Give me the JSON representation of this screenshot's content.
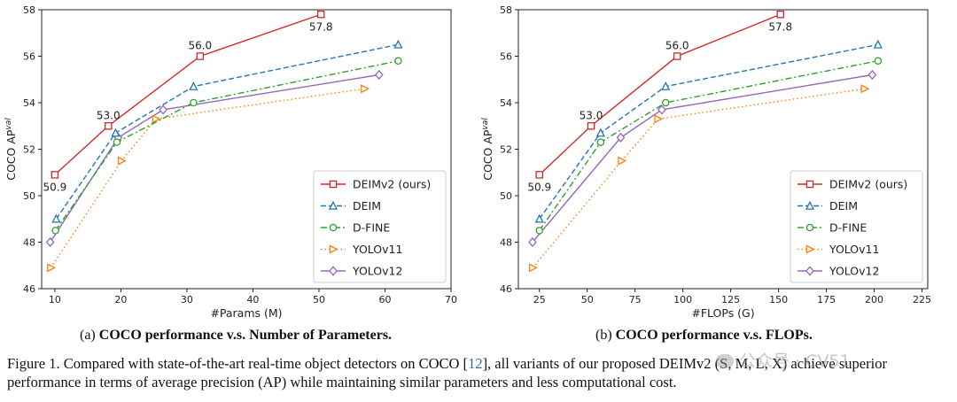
{
  "chart_data": [
    {
      "type": "line",
      "id": "params",
      "xlabel": "#Params (M)",
      "ylabel": "COCO AP",
      "ylabel_sup": "val",
      "xlim": [
        8,
        70
      ],
      "ylim": [
        46,
        58
      ],
      "xticks": [
        10,
        20,
        30,
        40,
        50,
        60,
        70
      ],
      "yticks": [
        46,
        48,
        50,
        52,
        54,
        56,
        58
      ],
      "annotations": [
        "50.9",
        "53.0",
        "56.0",
        "57.8"
      ],
      "series": [
        {
          "name": "DEIMv2 (ours)",
          "color": "#d62728",
          "dash": "solid",
          "marker": "square",
          "x": [
            10,
            18.1,
            32,
            50.3
          ],
          "y": [
            50.9,
            53.0,
            56.0,
            57.8
          ]
        },
        {
          "name": "DEIM",
          "color": "#1f77b4",
          "dash": "dashed",
          "marker": "triangle",
          "x": [
            10.2,
            19.2,
            31,
            62
          ],
          "y": [
            49.0,
            52.7,
            54.7,
            56.5
          ]
        },
        {
          "name": "D-FINE",
          "color": "#2ca02c",
          "dash": "dashdot",
          "marker": "circle",
          "x": [
            10.1,
            19.4,
            31,
            62
          ],
          "y": [
            48.5,
            52.3,
            54.0,
            55.8
          ]
        },
        {
          "name": "YOLOv11",
          "color": "#ff7f0e",
          "dash": "dotted",
          "marker": "triangle-right",
          "x": [
            9.4,
            20.1,
            25.3,
            56.9
          ],
          "y": [
            46.9,
            51.5,
            53.3,
            54.6
          ]
        },
        {
          "name": "YOLOv12",
          "color": "#9467bd",
          "dash": "solid",
          "marker": "diamond",
          "x": [
            9.3,
            19.6,
            26.4,
            59.1
          ],
          "y": [
            48.0,
            52.5,
            53.7,
            55.2
          ]
        }
      ]
    },
    {
      "type": "line",
      "id": "flops",
      "xlabel": "#FLOPs (G)",
      "ylabel": "COCO AP",
      "ylabel_sup": "val",
      "xlim": [
        14,
        228
      ],
      "ylim": [
        46,
        58
      ],
      "xticks": [
        25,
        50,
        75,
        100,
        125,
        150,
        175,
        200,
        225
      ],
      "yticks": [
        46,
        48,
        50,
        52,
        54,
        56,
        58
      ],
      "annotations": [
        "50.9",
        "53.0",
        "56.0",
        "57.8"
      ],
      "series": [
        {
          "name": "DEIMv2 (ours)",
          "color": "#d62728",
          "dash": "solid",
          "marker": "square",
          "x": [
            25,
            52,
            97,
            151
          ],
          "y": [
            50.9,
            53.0,
            56.0,
            57.8
          ]
        },
        {
          "name": "DEIM",
          "color": "#1f77b4",
          "dash": "dashed",
          "marker": "triangle",
          "x": [
            25,
            57,
            91,
            202
          ],
          "y": [
            49.0,
            52.7,
            54.7,
            56.5
          ]
        },
        {
          "name": "D-FINE",
          "color": "#2ca02c",
          "dash": "dashdot",
          "marker": "circle",
          "x": [
            25,
            57,
            91,
            202
          ],
          "y": [
            48.5,
            52.3,
            54.0,
            55.8
          ]
        },
        {
          "name": "YOLOv11",
          "color": "#ff7f0e",
          "dash": "dotted",
          "marker": "triangle-right",
          "x": [
            21.5,
            68,
            87,
            195
          ],
          "y": [
            46.9,
            51.5,
            53.3,
            54.6
          ]
        },
        {
          "name": "YOLOv12",
          "color": "#9467bd",
          "dash": "solid",
          "marker": "diamond",
          "x": [
            21.4,
            67.5,
            89,
            199
          ],
          "y": [
            48.0,
            52.5,
            53.7,
            55.2
          ]
        }
      ]
    }
  ],
  "subcaptions": {
    "a_prefix": "(a) ",
    "a_bold": "COCO performance v.s. Number of Parameters.",
    "b_prefix": "(b) ",
    "b_bold": "COCO performance v.s. FLOPs."
  },
  "caption": {
    "part1": "Figure 1.  Compared with state-of-the-art real-time object detectors on COCO [",
    "cite": "12",
    "part2": "], all variants of our proposed DEIMv2 (S, M, L, X) achieve superior performance in terms of average precision (AP) while maintaining similar parameters and less computational cost."
  },
  "watermark": "公众号 · CV51"
}
